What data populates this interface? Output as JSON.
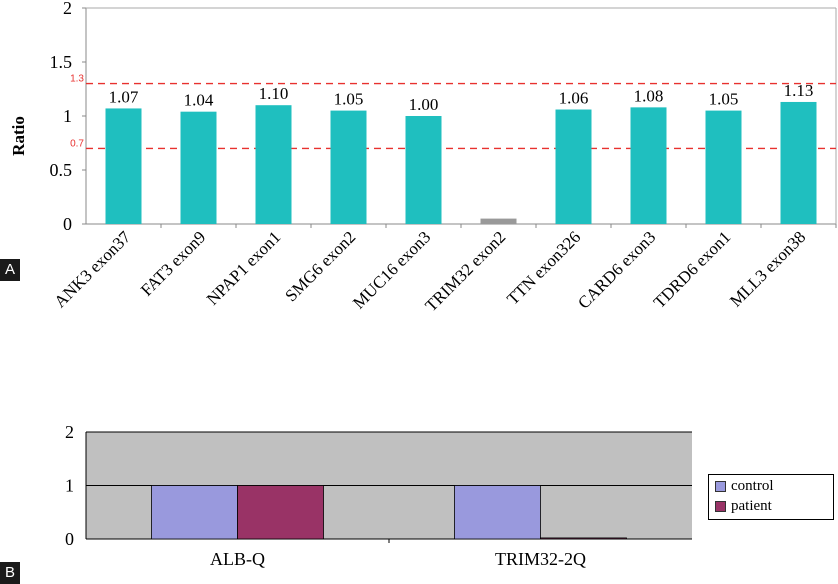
{
  "panels": {
    "a": "A",
    "b": "B"
  },
  "chart_data": [
    {
      "type": "bar",
      "ylabel": "Ratio",
      "ylim": [
        0,
        2
      ],
      "yticks": [
        "0",
        "0.5",
        "1",
        "1.5",
        "2"
      ],
      "grid": false,
      "bar_color": "#1fbfbf",
      "low_bar_color": "#999999",
      "categories": [
        "ANK3 exon37",
        "FAT3  exon9",
        "NPAP1  exon1",
        "SMG6  exon2",
        "MUC16 exon3",
        "TRIM32 exon2",
        "TTN  exon326",
        "CARD6 exon3",
        "TDRD6 exon1",
        "MLL3 exon38"
      ],
      "values": [
        1.07,
        1.04,
        1.1,
        1.05,
        1.0,
        0.05,
        1.06,
        1.08,
        1.05,
        1.13
      ],
      "data_labels": [
        "1.07",
        "1.04",
        "1.10",
        "1.05",
        "1.00",
        "",
        "1.06",
        "1.08",
        "1.05",
        "1.13"
      ],
      "reference_lines": [
        {
          "value": 1.3,
          "label": "1.3",
          "color": "#e8312f"
        },
        {
          "value": 0.7,
          "label": "0.7",
          "color": "#e8312f"
        }
      ]
    },
    {
      "type": "bar",
      "ylim": [
        0,
        2
      ],
      "yticks": [
        "0",
        "1",
        "2"
      ],
      "plot_background": "#c0c0c0",
      "categories": [
        "ALB-Q",
        "TRIM32-2Q"
      ],
      "series": [
        {
          "name": "control",
          "values": [
            1,
            1
          ],
          "color": "#9999dd"
        },
        {
          "name": "patient",
          "values": [
            1,
            0.02
          ],
          "color": "#993366"
        }
      ],
      "legend": "right"
    }
  ]
}
